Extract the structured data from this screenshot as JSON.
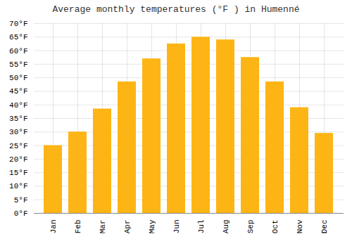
{
  "chart_data": {
    "type": "bar",
    "title": "Average monthly temperatures (°F ) in Humenné",
    "categories": [
      "Jan",
      "Feb",
      "Mar",
      "Apr",
      "May",
      "Jun",
      "Jul",
      "Aug",
      "Sep",
      "Oct",
      "Nov",
      "Dec"
    ],
    "values": [
      25,
      30,
      38.5,
      48.5,
      57,
      62.5,
      65,
      64,
      57.5,
      48.5,
      39,
      29.5
    ],
    "color": "#FDB515",
    "ylim": [
      0,
      70
    ],
    "yticks": [
      {
        "value": 0,
        "label": "0°F"
      },
      {
        "value": 5,
        "label": "5°F"
      },
      {
        "value": 10,
        "label": "10°F"
      },
      {
        "value": 15,
        "label": "15°F"
      },
      {
        "value": 20,
        "label": "20°F"
      },
      {
        "value": 25,
        "label": "25°F"
      },
      {
        "value": 30,
        "label": "30°F"
      },
      {
        "value": 35,
        "label": "35°F"
      },
      {
        "value": 40,
        "label": "40°F"
      },
      {
        "value": 45,
        "label": "45°F"
      },
      {
        "value": 50,
        "label": "50°F"
      },
      {
        "value": 55,
        "label": "55°F"
      },
      {
        "value": 60,
        "label": "60°F"
      },
      {
        "value": 65,
        "label": "65°F"
      },
      {
        "value": 70,
        "label": "70°F"
      }
    ],
    "grid": true
  }
}
